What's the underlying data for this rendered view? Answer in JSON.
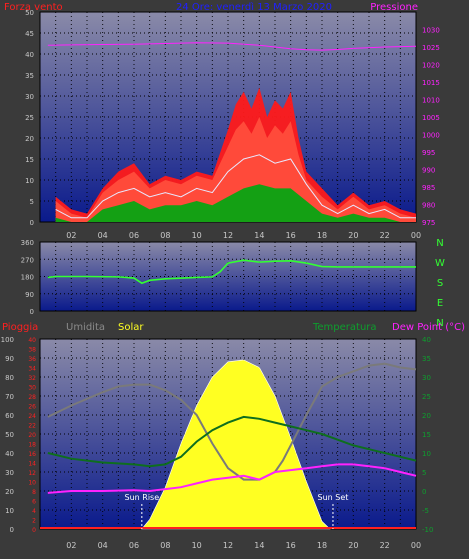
{
  "colors": {
    "background": "#3a3a3a",
    "plot_top": "#8a8aa8",
    "plot_bottom": "#0a1a8c",
    "wind_gust": "#ff1a1a",
    "wind_avg": "#e8e8ff",
    "wind_min": "#14a014",
    "pressure": "#ff22ff",
    "direction": "#33ff33",
    "humidity": "#7a7a7a",
    "solar": "#ffff22",
    "temperature": "#0e6e1e",
    "dewpoint": "#ff22ff",
    "rain": "#ff2020",
    "axis_text": "#c8c8c8"
  },
  "header": {
    "wind_label": "Forza vento",
    "date_range": "24 Ore: venerdì 13 Marzo 2020",
    "pressure_label": "Pressione"
  },
  "x_hours": [
    "02",
    "04",
    "06",
    "08",
    "10",
    "12",
    "14",
    "16",
    "18",
    "20",
    "22",
    "00"
  ],
  "compass": [
    "N",
    "W",
    "S",
    "E",
    "N"
  ],
  "bottom_labels": {
    "rain": "Pioggia",
    "humidity": "Umidita",
    "solar": "Solar",
    "temperature": "Temperatura",
    "dewpoint": "Dew Point (°C)",
    "sunrise": "Sun Rise",
    "sunset": "Sun Set"
  },
  "chart_data": [
    {
      "type": "area",
      "title": "Forza vento",
      "x_unit": "hour",
      "x_range": [
        1,
        24
      ],
      "ylim_left": [
        0,
        50
      ],
      "ylim_right": [
        975,
        1035
      ],
      "yticks_left": [
        "0",
        "5",
        "10",
        "15",
        "20",
        "25",
        "30",
        "35",
        "40",
        "45",
        "50"
      ],
      "yticks_right": [
        "975",
        "980",
        "985",
        "990",
        "995",
        "1000",
        "1005",
        "1010",
        "1015",
        "1020",
        "1025",
        "1030"
      ],
      "gust_high": {
        "x": [
          1,
          2,
          3,
          4,
          5,
          6,
          7,
          8,
          9,
          10,
          11,
          12,
          12.5,
          13,
          13.5,
          14,
          14.5,
          15,
          15.5,
          16,
          16.5,
          17,
          18,
          19,
          20,
          21,
          22,
          23,
          24
        ],
        "y": [
          6,
          3,
          2,
          8,
          12,
          14,
          9,
          11,
          10,
          12,
          11,
          22,
          28,
          31,
          27,
          32,
          25,
          29,
          27,
          31,
          20,
          12,
          8,
          4,
          7,
          4,
          5,
          3,
          2
        ]
      },
      "gust": {
        "x": [
          1,
          2,
          3,
          4,
          5,
          6,
          7,
          8,
          9,
          10,
          11,
          12,
          12.5,
          13,
          13.5,
          14,
          14.5,
          15,
          15.5,
          16,
          16.5,
          17,
          18,
          19,
          20,
          21,
          22,
          23,
          24
        ],
        "y": [
          5,
          2,
          1,
          7,
          10,
          12,
          8,
          10,
          9,
          11,
          10,
          18,
          22,
          24,
          21,
          25,
          20,
          23,
          21,
          24,
          16,
          10,
          6,
          3,
          6,
          3,
          4,
          2,
          1
        ]
      },
      "average": {
        "x": [
          1,
          2,
          3,
          4,
          5,
          6,
          7,
          8,
          9,
          10,
          11,
          12,
          13,
          14,
          15,
          16,
          17,
          18,
          19,
          20,
          21,
          22,
          23,
          24
        ],
        "y": [
          3,
          1,
          1,
          5,
          7,
          8,
          6,
          7,
          6,
          8,
          7,
          12,
          15,
          16,
          14,
          15,
          9,
          4,
          2,
          4,
          2,
          3,
          1,
          1
        ]
      },
      "minimum": {
        "x": [
          1,
          2,
          3,
          4,
          5,
          6,
          7,
          8,
          9,
          10,
          11,
          12,
          13,
          14,
          15,
          16,
          17,
          18,
          19,
          20,
          21,
          22,
          23,
          24
        ],
        "y": [
          1,
          0,
          0,
          3,
          4,
          5,
          3,
          4,
          4,
          5,
          4,
          6,
          8,
          9,
          8,
          8,
          5,
          2,
          1,
          2,
          1,
          1,
          0,
          0
        ]
      },
      "pressure": {
        "x": [
          0.5,
          2,
          4,
          6,
          8,
          10,
          12,
          14,
          16,
          17,
          18,
          19,
          20,
          22,
          24
        ],
        "y": [
          1025.5,
          1025.6,
          1025.7,
          1025.8,
          1026.0,
          1026.2,
          1026.1,
          1025.5,
          1024.5,
          1024.2,
          1024.1,
          1024.3,
          1024.6,
          1025.0,
          1025.2
        ]
      }
    },
    {
      "type": "line",
      "title": "",
      "x_unit": "hour",
      "ylim": [
        0,
        360
      ],
      "yticks": [
        "0",
        "90",
        "180",
        "270",
        "360"
      ],
      "direction": {
        "x": [
          0.5,
          1,
          3,
          5,
          6,
          6.5,
          7,
          8,
          10,
          11,
          11.5,
          12,
          13,
          14,
          15,
          16,
          17,
          18,
          19,
          20,
          22,
          24
        ],
        "y": [
          175,
          180,
          180,
          178,
          172,
          145,
          160,
          168,
          175,
          178,
          205,
          250,
          265,
          255,
          260,
          262,
          250,
          232,
          230,
          230,
          230,
          230
        ]
      }
    },
    {
      "type": "line",
      "title": "",
      "x_unit": "hour",
      "ylim_humidity": [
        0,
        100
      ],
      "ylim_rain": [
        0,
        40
      ],
      "ylim_temp": [
        -10,
        40
      ],
      "yticks_humidity": [
        "0",
        "10",
        "20",
        "30",
        "40",
        "50",
        "60",
        "70",
        "80",
        "90",
        "100"
      ],
      "yticks_rain": [
        "0",
        "2",
        "4",
        "6",
        "8",
        "10",
        "12",
        "14",
        "16",
        "18",
        "20",
        "22",
        "24",
        "26",
        "28",
        "30",
        "32",
        "34",
        "36",
        "38",
        "40"
      ],
      "yticks_temp": [
        "-10",
        "-5",
        "0",
        "5",
        "10",
        "15",
        "20",
        "25",
        "30",
        "35",
        "40"
      ],
      "humidity": {
        "x": [
          0.5,
          2,
          4,
          5,
          6,
          7,
          8,
          9,
          10,
          11,
          12,
          13,
          14,
          15,
          15.5,
          16,
          17,
          18,
          19,
          20,
          21,
          22,
          23,
          24
        ],
        "y": [
          59,
          65,
          72,
          75,
          76,
          76,
          73,
          68,
          60,
          45,
          32,
          26,
          26,
          30,
          36,
          44,
          60,
          75,
          80,
          83,
          86,
          87,
          85,
          84
        ]
      },
      "solar": {
        "x": [
          6.5,
          7,
          8,
          9,
          10,
          11,
          12,
          13,
          14,
          15,
          16,
          17,
          18,
          18.5
        ],
        "y": [
          0,
          50,
          220,
          450,
          650,
          800,
          880,
          890,
          850,
          700,
          480,
          250,
          40,
          0
        ]
      },
      "solar_max": 1000,
      "temperature": {
        "x": [
          0.5,
          2,
          4,
          6,
          7,
          8,
          9,
          10,
          11,
          12,
          13,
          14,
          15,
          16,
          17,
          18,
          19,
          20,
          21,
          22,
          23,
          24
        ],
        "y": [
          10,
          8.5,
          7.5,
          7,
          6.5,
          7,
          9,
          13,
          16,
          18,
          19.5,
          19,
          18,
          17,
          16,
          15,
          13.5,
          12,
          11,
          10,
          9,
          8
        ]
      },
      "dewpoint": {
        "x": [
          0.5,
          2,
          4,
          6,
          7,
          8,
          9,
          10,
          11,
          12,
          13,
          14,
          15,
          16,
          17,
          18,
          19,
          20,
          21,
          22,
          23,
          24
        ],
        "y": [
          -0.5,
          0,
          0,
          0.2,
          0,
          0.5,
          1,
          2,
          3,
          3.5,
          4,
          3,
          5,
          5.5,
          6,
          6.5,
          7,
          7,
          6.5,
          6,
          5,
          4
        ]
      },
      "sunrise_hour": 6.5,
      "sunset_hour": 18.7
    }
  ]
}
